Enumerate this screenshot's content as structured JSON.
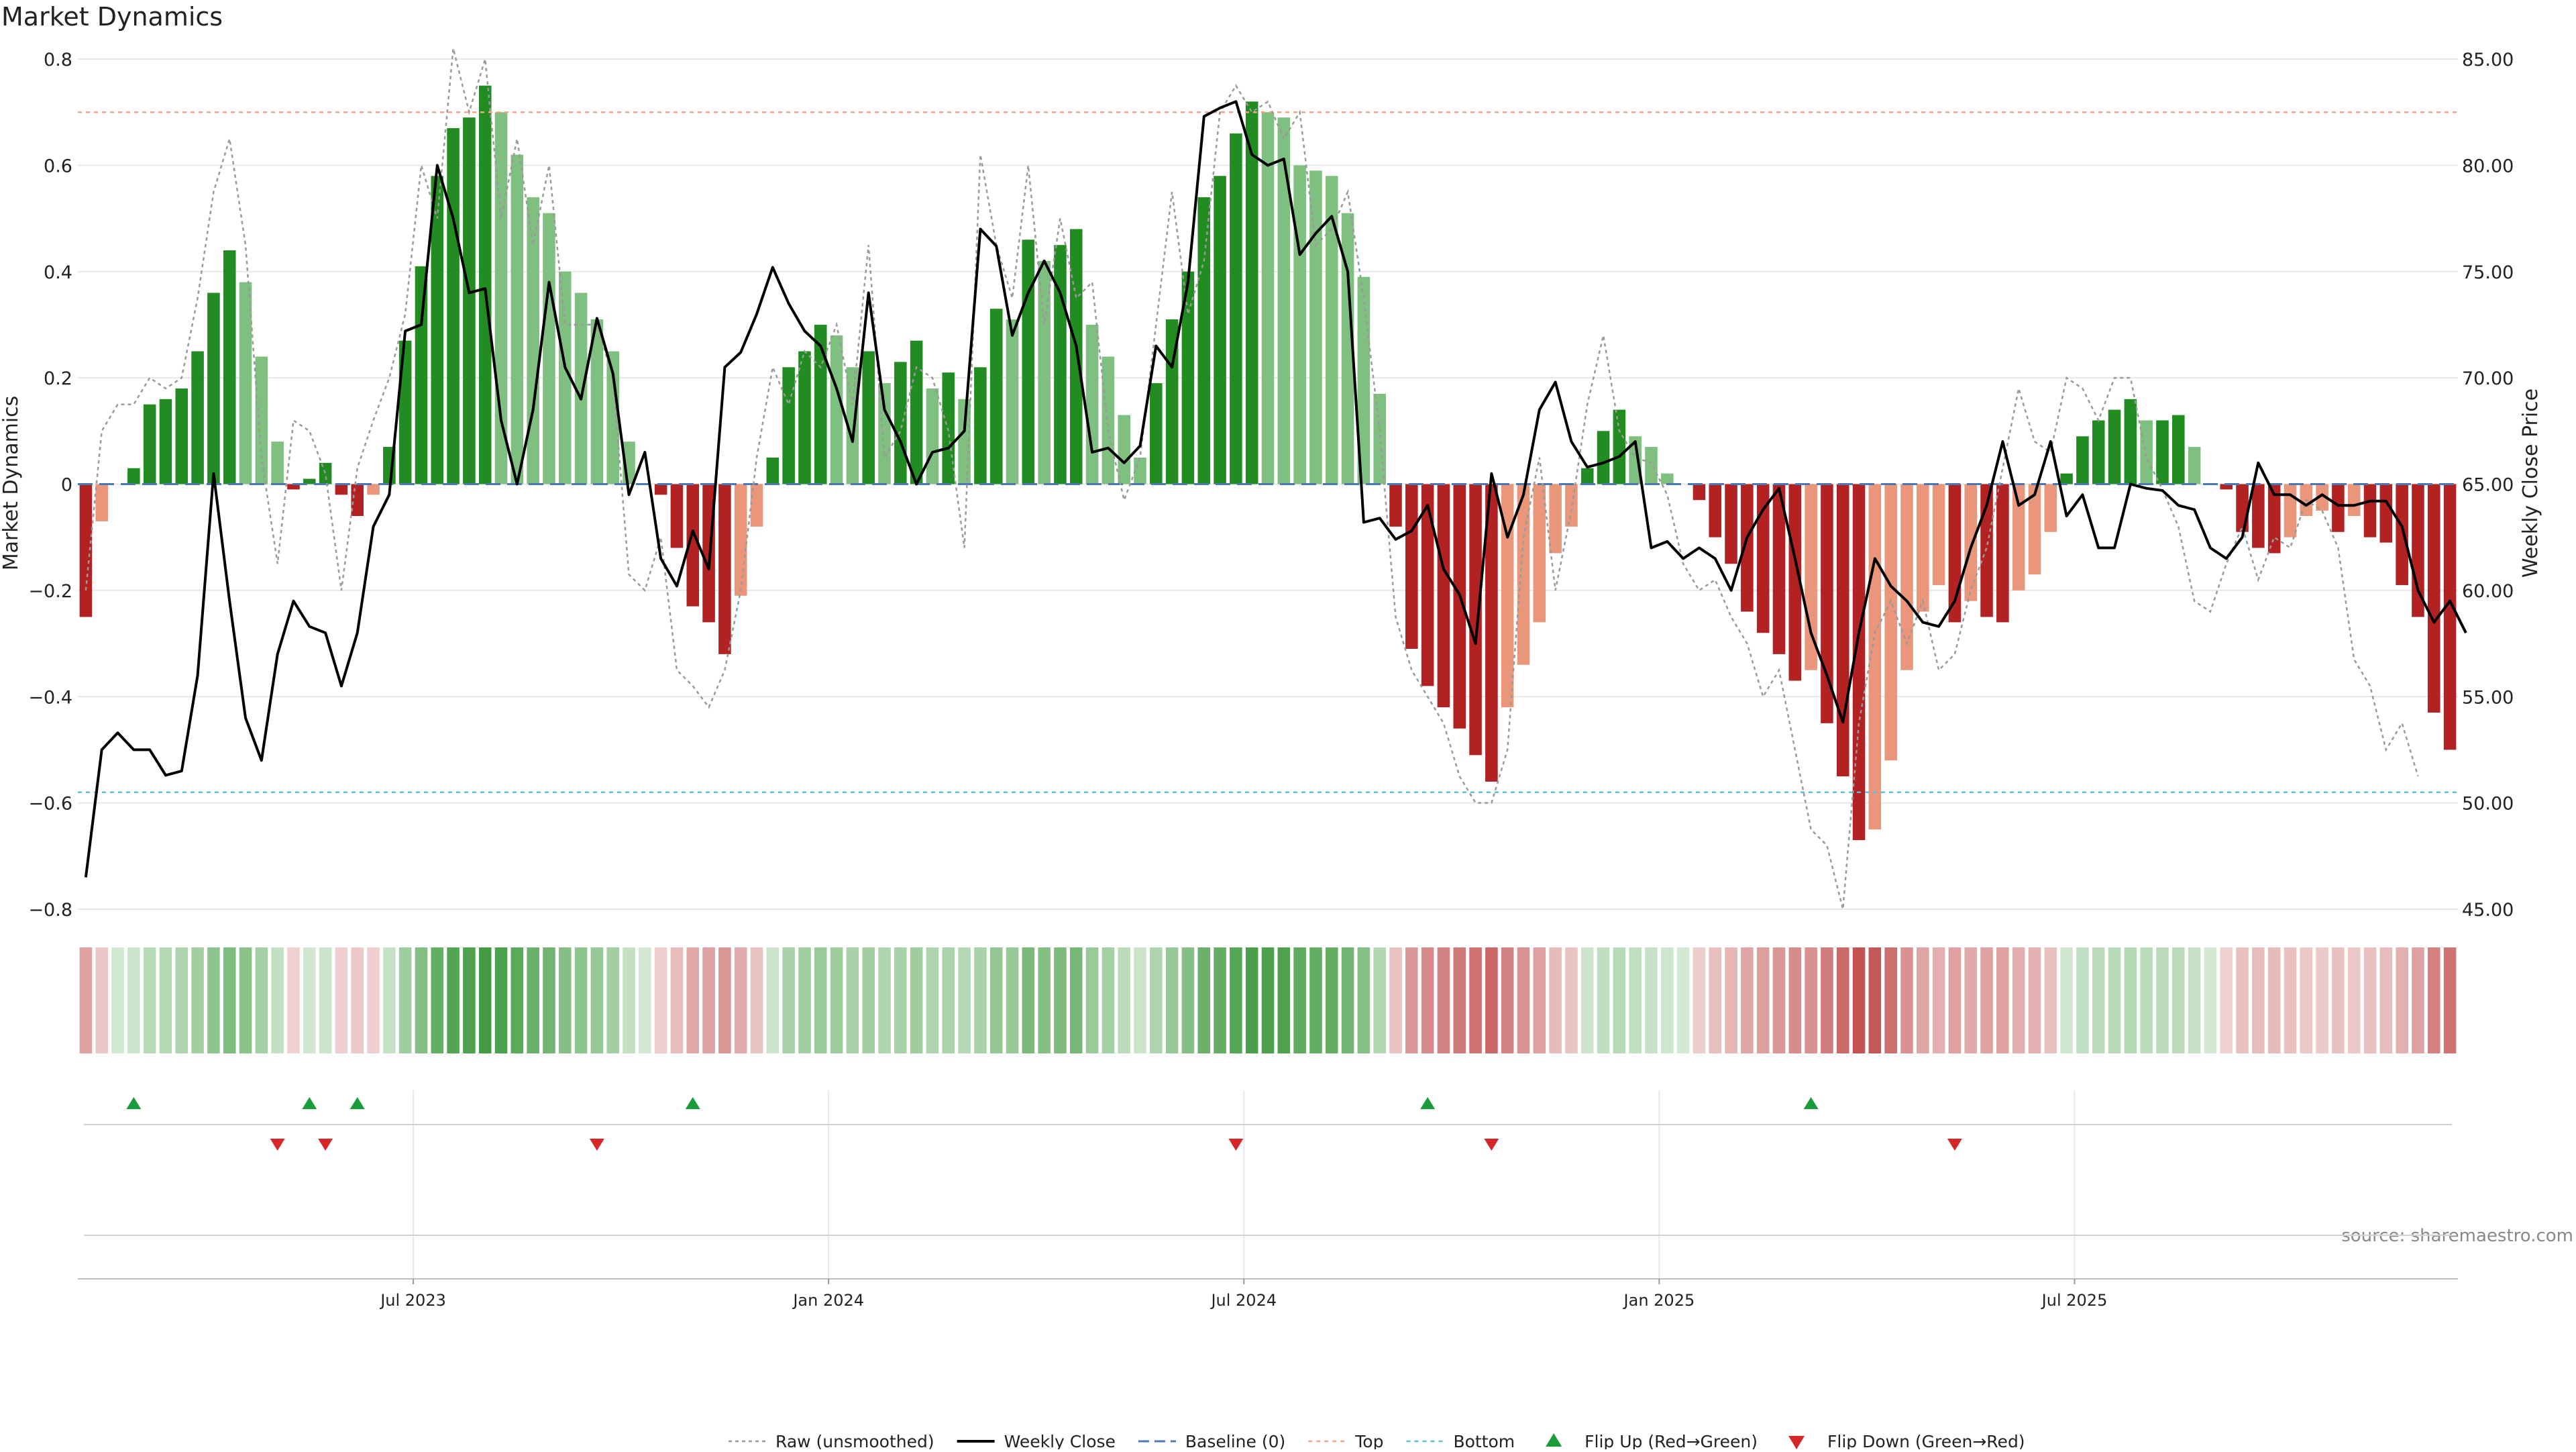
{
  "colors": {
    "up_strong": "#228b22",
    "up_weak": "#7fbf7f",
    "down_strong": "#b22222",
    "down_weak": "#e9967a",
    "raw": "#9a9a9a",
    "close": "#000000",
    "baseline": "#4a78b5",
    "top": "#f4a582",
    "bottom": "#5bc0de",
    "flip_up": "#1a9c3b",
    "flip_down": "#d62728",
    "grid": "#e8e8e8"
  },
  "chart_data": {
    "type": "bar",
    "title": "Market Dynamics",
    "ylabel_left": "Market Dynamics",
    "ylabel_right": "Weekly Close Price",
    "ylim_left": [
      -0.8,
      0.8
    ],
    "ylim_right": [
      45,
      85
    ],
    "yticks_left": [
      "0.8",
      "0.6",
      "0.4",
      "0.2",
      "0",
      "−0.2",
      "−0.4",
      "−0.6",
      "−0.8"
    ],
    "yticks_right": [
      "85.00",
      "80.00",
      "75.00",
      "70.00",
      "65.00",
      "60.00",
      "55.00",
      "50.00",
      "45.00"
    ],
    "x_ticks": [
      "Jul 2023",
      "Jan 2024",
      "Jul 2024",
      "Jan 2025",
      "Jul 2025"
    ],
    "x_tick_weeks": [
      21,
      47,
      73,
      99,
      125
    ],
    "top_level": 0.7,
    "bottom_level": -0.58,
    "grid": true,
    "legend_placement": "bottom-center",
    "source": "source: sharemaestro.com",
    "dynamics": [
      -0.25,
      -0.07,
      0,
      0.03,
      0.15,
      0.16,
      0.18,
      0.25,
      0.36,
      0.44,
      0.38,
      0.24,
      0.08,
      -0.01,
      0.01,
      0.04,
      -0.02,
      -0.06,
      -0.02,
      0.07,
      0.27,
      0.41,
      0.58,
      0.67,
      0.69,
      0.75,
      0.7,
      0.62,
      0.54,
      0.51,
      0.4,
      0.36,
      0.31,
      0.25,
      0.08,
      0,
      -0.02,
      -0.12,
      -0.23,
      -0.26,
      -0.32,
      -0.21,
      -0.08,
      0.05,
      0.22,
      0.25,
      0.3,
      0.28,
      0.22,
      0.25,
      0.19,
      0.23,
      0.27,
      0.18,
      0.21,
      0.16,
      0.22,
      0.33,
      0.31,
      0.46,
      0.42,
      0.45,
      0.48,
      0.3,
      0.24,
      0.13,
      0.05,
      0.19,
      0.31,
      0.4,
      0.54,
      0.58,
      0.66,
      0.72,
      0.7,
      0.69,
      0.6,
      0.59,
      0.58,
      0.51,
      0.39,
      0.17,
      -0.08,
      -0.31,
      -0.38,
      -0.42,
      -0.46,
      -0.51,
      -0.56,
      -0.42,
      -0.34,
      -0.26,
      -0.13,
      -0.08,
      0.03,
      0.1,
      0.14,
      0.09,
      0.07,
      0.02,
      0,
      -0.03,
      -0.1,
      -0.15,
      -0.24,
      -0.28,
      -0.32,
      -0.37,
      -0.35,
      -0.45,
      -0.55,
      -0.67,
      -0.65,
      -0.52,
      -0.35,
      -0.24,
      -0.19,
      -0.26,
      -0.22,
      -0.25,
      -0.26,
      -0.2,
      -0.17,
      -0.09,
      0.02,
      0.09,
      0.12,
      0.14,
      0.16,
      0.12,
      0.12,
      0.13,
      0.07,
      0,
      -0.01,
      -0.09,
      -0.12,
      -0.13,
      -0.1,
      -0.06,
      -0.05,
      -0.09,
      -0.06,
      -0.1,
      -0.11,
      -0.19,
      -0.25,
      -0.43,
      -0.5
    ],
    "raw": [
      -0.2,
      0.1,
      0.15,
      0.15,
      0.2,
      0.18,
      0.2,
      0.35,
      0.55,
      0.65,
      0.45,
      0.05,
      -0.15,
      0.12,
      0.1,
      0.02,
      -0.2,
      0.03,
      0.12,
      0.2,
      0.32,
      0.6,
      0.5,
      0.82,
      0.7,
      0.8,
      0.5,
      0.65,
      0.45,
      0.6,
      0.3,
      0.3,
      0.3,
      0.2,
      -0.17,
      -0.2,
      -0.1,
      -0.35,
      -0.38,
      -0.42,
      -0.35,
      -0.2,
      0.05,
      0.22,
      0.15,
      0.25,
      0.22,
      0.3,
      0.15,
      0.45,
      0.05,
      0.1,
      0.22,
      0.2,
      0.1,
      -0.12,
      0.62,
      0.45,
      0.35,
      0.6,
      0.3,
      0.5,
      0.35,
      0.38,
      0.1,
      -0.03,
      0.05,
      0.3,
      0.55,
      0.32,
      0.42,
      0.7,
      0.75,
      0.7,
      0.72,
      0.65,
      0.7,
      0.45,
      0.48,
      0.55,
      0.35,
      0.1,
      -0.25,
      -0.35,
      -0.4,
      -0.45,
      -0.55,
      -0.6,
      -0.6,
      -0.5,
      -0.1,
      0.05,
      -0.2,
      -0.05,
      0.15,
      0.28,
      0.1,
      0.05,
      0.04,
      -0.02,
      -0.15,
      -0.2,
      -0.18,
      -0.25,
      -0.3,
      -0.4,
      -0.35,
      -0.5,
      -0.65,
      -0.68,
      -0.8,
      -0.45,
      -0.28,
      -0.22,
      -0.3,
      -0.22,
      -0.35,
      -0.32,
      -0.2,
      -0.12,
      0.03,
      0.18,
      0.08,
      0.06,
      0.2,
      0.18,
      0.12,
      0.2,
      0.2,
      0.05,
      -0.01,
      -0.08,
      -0.22,
      -0.24,
      -0.15,
      -0.08,
      -0.18,
      -0.1,
      -0.12,
      -0.03,
      -0.05,
      -0.12,
      -0.33,
      -0.38,
      -0.5,
      -0.45,
      -0.55
    ],
    "weekly_close": [
      46.5,
      52.5,
      53.3,
      52.5,
      52.5,
      51.3,
      51.5,
      56,
      65.5,
      59.5,
      54,
      52,
      57,
      59.5,
      58.3,
      58,
      55.5,
      58,
      63,
      64.5,
      72.2,
      72.5,
      80,
      77.5,
      74,
      74.2,
      68,
      65,
      68.5,
      74.5,
      70.5,
      69,
      72.8,
      70.2,
      64.5,
      66.5,
      61.5,
      60.2,
      62.8,
      61,
      70.5,
      71.2,
      73,
      75.2,
      73.5,
      72.2,
      71.5,
      69.5,
      67,
      74,
      68.5,
      67,
      65,
      66.5,
      66.7,
      67.5,
      77,
      76.2,
      72,
      74,
      75.5,
      74,
      71.5,
      66.5,
      66.7,
      66,
      66.8,
      71.5,
      70.5,
      74.5,
      82.3,
      82.7,
      83,
      80.5,
      80,
      80.3,
      75.8,
      76.8,
      77.6,
      75,
      63.2,
      63.4,
      62.4,
      62.8,
      64,
      61,
      59.8,
      57.5,
      65.5,
      62.5,
      64.5,
      68.5,
      69.8,
      67,
      65.8,
      66,
      66.3,
      67,
      62,
      62.3,
      61.5,
      62,
      61.5,
      60,
      62.5,
      63.8,
      64.8,
      61.5,
      58,
      56,
      53.8,
      58,
      61.5,
      60.2,
      59.5,
      58.5,
      58.3,
      59.5,
      62,
      64,
      67,
      64,
      64.5,
      67,
      63.5,
      64.5,
      62,
      62,
      65,
      64.8,
      64.7,
      64,
      63.8,
      62,
      61.5,
      62.5,
      66,
      64.5,
      64.5,
      64,
      64.5,
      64,
      64,
      64.2,
      64.2,
      63,
      60,
      58.5,
      59.5,
      58
    ]
  },
  "flips": {
    "up": [
      3,
      14,
      17,
      38,
      84,
      108
    ],
    "down": [
      12,
      15,
      32,
      72,
      88,
      117
    ]
  },
  "legend": [
    {
      "key": "raw",
      "label": "Raw (unsmoothed)"
    },
    {
      "key": "close",
      "label": "Weekly Close"
    },
    {
      "key": "baseline",
      "label": "Baseline (0)"
    },
    {
      "key": "top",
      "label": "Top"
    },
    {
      "key": "bottom",
      "label": "Bottom"
    },
    {
      "key": "flip_up",
      "label": "Flip Up (Red→Green)"
    },
    {
      "key": "flip_down",
      "label": "Flip Down (Green→Red)"
    }
  ]
}
